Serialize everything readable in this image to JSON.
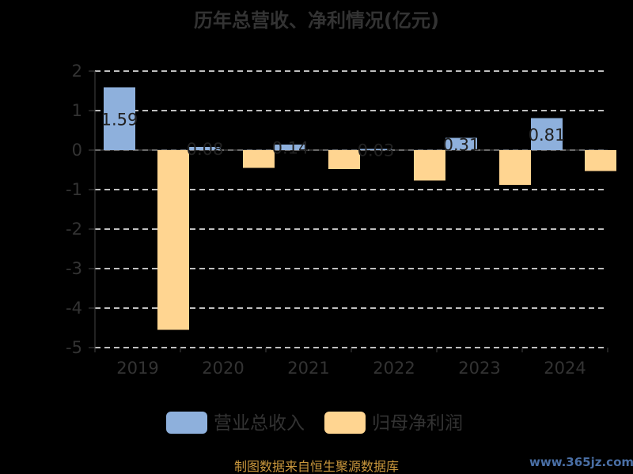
{
  "chart_data": {
    "type": "bar",
    "title": "历年总营收、净利情况(亿元)",
    "categories": [
      "2019",
      "2020",
      "2021",
      "2022",
      "2023",
      "2024"
    ],
    "series": [
      {
        "name": "营业总收入",
        "color": "#8eb0dc",
        "values": [
          1.59,
          0.08,
          0.14,
          0.03,
          0.31,
          0.81
        ],
        "labels": [
          "1.59",
          "0.08",
          "0.14",
          "0.03",
          "0.31",
          "0.81"
        ]
      },
      {
        "name": "归母净利润",
        "color": "#ffd591",
        "values": [
          -4.55,
          -0.45,
          -0.48,
          -0.77,
          -0.88,
          -0.53
        ],
        "labels": [
          "",
          "",
          "",
          "",
          "",
          ""
        ]
      }
    ],
    "yticks": [
      "2",
      "1",
      "0",
      "-1",
      "-2",
      "-3",
      "-4",
      "-5"
    ],
    "ylim": [
      -5,
      2
    ],
    "grid": true,
    "legend": "bottom"
  },
  "footer": "制图数据来自恒生聚源数据库",
  "watermark": "www.365jz.com"
}
